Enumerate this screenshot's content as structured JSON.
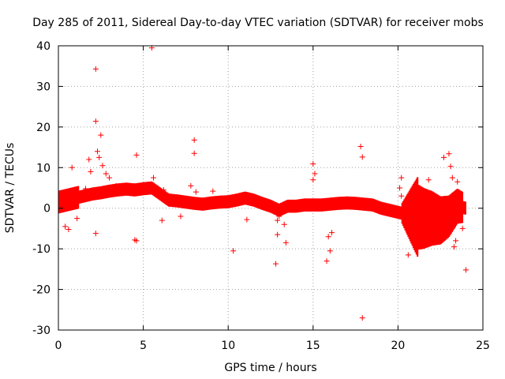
{
  "chart_data": {
    "type": "scatter",
    "title": "Day 285 of 2011, Sidereal Day-to-day VTEC variation (SDTVAR) for receiver mobs",
    "xlabel": "GPS time / hours",
    "ylabel": "SDTVAR / TECUs",
    "xlim": [
      0,
      25
    ],
    "ylim": [
      -30,
      40
    ],
    "xticks": [
      0,
      5,
      10,
      15,
      20,
      25
    ],
    "yticks": [
      -30,
      -20,
      -10,
      0,
      10,
      20,
      30,
      40
    ],
    "xtick_labels": [
      "0",
      "5",
      "10",
      "15",
      "20",
      "25"
    ],
    "ytick_labels": [
      "-30",
      "-20",
      "-10",
      "0",
      "10",
      "20",
      "30",
      "40"
    ],
    "grid": true,
    "marker": "+",
    "color": "#ff0000",
    "series": [
      {
        "name": "SDTVAR",
        "trend": [
          [
            0.0,
            1.5
          ],
          [
            0.5,
            2.0
          ],
          [
            1.0,
            2.5
          ],
          [
            1.5,
            3.0
          ],
          [
            2.0,
            3.5
          ],
          [
            2.5,
            3.8
          ],
          [
            3.0,
            4.2
          ],
          [
            3.5,
            4.5
          ],
          [
            4.0,
            4.7
          ],
          [
            4.5,
            4.5
          ],
          [
            5.0,
            4.8
          ],
          [
            5.5,
            5.0
          ],
          [
            6.0,
            3.5
          ],
          [
            6.5,
            2.0
          ],
          [
            7.0,
            1.8
          ],
          [
            7.5,
            1.5
          ],
          [
            8.0,
            1.2
          ],
          [
            8.5,
            1.0
          ],
          [
            9.0,
            1.3
          ],
          [
            9.5,
            1.5
          ],
          [
            10.0,
            1.6
          ],
          [
            10.5,
            2.0
          ],
          [
            11.0,
            2.5
          ],
          [
            11.5,
            2.0
          ],
          [
            12.0,
            1.2
          ],
          [
            12.5,
            0.5
          ],
          [
            13.0,
            -0.5
          ],
          [
            13.5,
            0.5
          ],
          [
            14.0,
            0.5
          ],
          [
            14.5,
            0.8
          ],
          [
            15.0,
            0.8
          ],
          [
            15.5,
            0.8
          ],
          [
            16.0,
            1.0
          ],
          [
            16.5,
            1.2
          ],
          [
            17.0,
            1.3
          ],
          [
            17.5,
            1.2
          ],
          [
            18.0,
            1.0
          ],
          [
            18.5,
            0.8
          ],
          [
            19.0,
            0.0
          ],
          [
            19.5,
            -0.5
          ],
          [
            20.0,
            -1.0
          ],
          [
            20.5,
            -1.5
          ],
          [
            21.0,
            -2.0
          ],
          [
            21.5,
            -2.5
          ],
          [
            22.0,
            -2.5
          ],
          [
            22.5,
            -3.0
          ],
          [
            23.0,
            -2.0
          ],
          [
            23.5,
            0.5
          ],
          [
            24.0,
            0.0
          ]
        ],
        "outliers": [
          [
            5.5,
            39.5
          ],
          [
            2.2,
            34.3
          ],
          [
            2.2,
            21.4
          ],
          [
            2.5,
            18.0
          ],
          [
            8.0,
            16.8
          ],
          [
            17.8,
            15.2
          ],
          [
            8.0,
            13.5
          ],
          [
            17.9,
            12.6
          ],
          [
            4.6,
            13.1
          ],
          [
            23.0,
            13.4
          ],
          [
            22.7,
            12.5
          ],
          [
            1.8,
            12.0
          ],
          [
            15.0,
            10.9
          ],
          [
            0.8,
            10.0
          ],
          [
            23.1,
            10.3
          ],
          [
            1.9,
            9.0
          ],
          [
            15.1,
            8.5
          ],
          [
            20.2,
            7.5
          ],
          [
            21.8,
            7.0
          ],
          [
            2.2,
            -6.2
          ],
          [
            4.5,
            -7.8
          ],
          [
            4.6,
            -8.0
          ],
          [
            10.3,
            -10.5
          ],
          [
            12.8,
            -13.7
          ],
          [
            15.8,
            -13.0
          ],
          [
            13.4,
            -8.5
          ],
          [
            12.9,
            -6.5
          ],
          [
            23.3,
            -9.5
          ],
          [
            24.0,
            -15.2
          ],
          [
            17.9,
            -27.0
          ],
          [
            6.1,
            -3.0
          ],
          [
            11.1,
            -2.8
          ]
        ]
      }
    ]
  }
}
